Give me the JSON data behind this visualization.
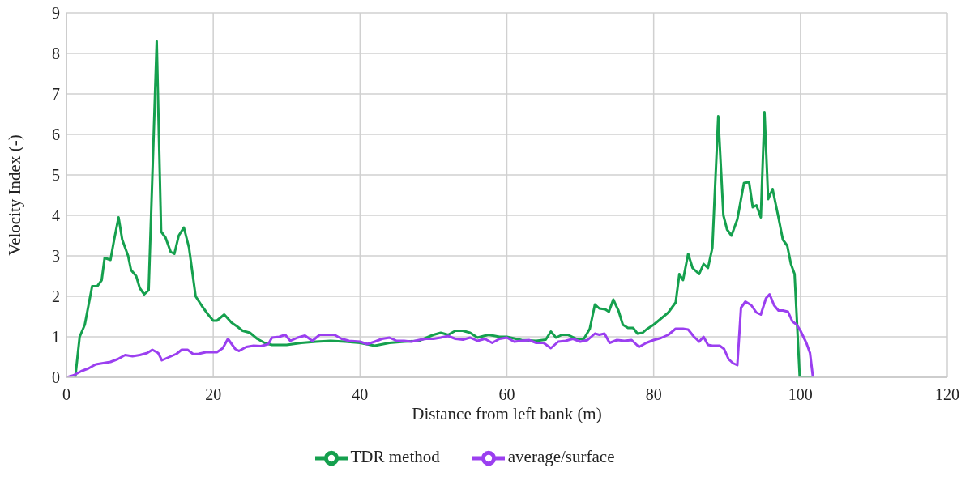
{
  "chart_data": {
    "type": "line",
    "xlabel": "Distance from left bank (m)",
    "ylabel": "Velocity Index (-)",
    "xlim": [
      0,
      120
    ],
    "xticks": [
      0,
      20,
      40,
      60,
      80,
      100,
      120
    ],
    "ylim": [
      0,
      9
    ],
    "yticks": [
      0,
      1,
      2,
      3,
      4,
      5,
      6,
      7,
      8,
      9
    ],
    "grid": true,
    "legend": "bottom",
    "marker": "none",
    "line_style": "solid",
    "series": [
      {
        "name": "TDR method",
        "color": "#15a04e",
        "x": [
          1.2,
          1.8,
          2.5,
          3.5,
          4.2,
          4.8,
          5.2,
          6,
          6.5,
          7.1,
          7.6,
          8.4,
          8.8,
          9.5,
          10,
          10.6,
          11.2,
          12.3,
          12.9,
          13.5,
          14.2,
          14.7,
          15.3,
          16,
          16.7,
          17.6,
          18.5,
          19.3,
          20,
          20.5,
          21.5,
          22.5,
          23.3,
          24,
          25,
          26,
          27,
          28,
          30,
          32,
          34,
          36,
          38,
          40,
          42,
          44,
          46,
          48,
          50,
          51,
          52,
          53,
          54,
          55,
          56,
          57.5,
          59,
          60,
          62,
          64,
          65.3,
          66,
          66.7,
          67.5,
          68.3,
          69.5,
          70.5,
          71.3,
          72,
          72.6,
          73.4,
          73.9,
          74.5,
          75.2,
          75.8,
          76.5,
          77.2,
          77.8,
          78.5,
          79,
          80,
          81,
          82,
          83,
          83.5,
          84,
          84.7,
          85.3,
          86.2,
          86.8,
          87.4,
          88,
          88.8,
          89.5,
          90,
          90.6,
          91.4,
          92.3,
          93,
          93.5,
          94,
          94.6,
          95.1,
          95.6,
          96.2,
          97,
          97.6,
          98.2,
          98.7,
          99.2,
          99.9,
          101.7
        ],
        "values": [
          0,
          1.0,
          1.3,
          2.25,
          2.25,
          2.4,
          2.95,
          2.9,
          3.4,
          3.95,
          3.4,
          3.0,
          2.65,
          2.5,
          2.2,
          2.05,
          2.15,
          8.3,
          3.6,
          3.45,
          3.1,
          3.05,
          3.5,
          3.7,
          3.2,
          2.0,
          1.75,
          1.55,
          1.4,
          1.4,
          1.55,
          1.35,
          1.25,
          1.15,
          1.1,
          0.95,
          0.85,
          0.8,
          0.8,
          0.85,
          0.88,
          0.9,
          0.88,
          0.85,
          0.78,
          0.85,
          0.88,
          0.9,
          1.05,
          1.1,
          1.05,
          1.15,
          1.15,
          1.1,
          0.98,
          1.05,
          1.0,
          1.0,
          0.92,
          0.9,
          0.93,
          1.13,
          0.98,
          1.05,
          1.05,
          0.95,
          0.95,
          1.2,
          1.8,
          1.7,
          1.68,
          1.62,
          1.92,
          1.65,
          1.3,
          1.22,
          1.22,
          1.08,
          1.1,
          1.18,
          1.3,
          1.45,
          1.6,
          1.85,
          2.55,
          2.4,
          3.05,
          2.7,
          2.55,
          2.8,
          2.7,
          3.2,
          6.45,
          4.0,
          3.65,
          3.5,
          3.9,
          4.8,
          4.82,
          4.2,
          4.25,
          3.95,
          6.55,
          4.4,
          4.65,
          3.95,
          3.4,
          3.25,
          2.8,
          2.55,
          0,
          0
        ]
      },
      {
        "name": "average/surface",
        "color": "#9b3ff0",
        "x": [
          0,
          1,
          2,
          3,
          4,
          5,
          6,
          7,
          8,
          9,
          10,
          11,
          11.7,
          12.5,
          13,
          14,
          15,
          15.7,
          16.5,
          17.3,
          18,
          19,
          20.5,
          21.3,
          22,
          23,
          23.5,
          24.5,
          25.5,
          26.5,
          27.5,
          28,
          29,
          29.8,
          30.5,
          31.5,
          32.5,
          33.5,
          34.5,
          35.5,
          36.5,
          37.5,
          38.5,
          40,
          41,
          42,
          43,
          44,
          45,
          46,
          47,
          48,
          49,
          50,
          51,
          52,
          53,
          54,
          55,
          56,
          57,
          58,
          59,
          60,
          61,
          62,
          63,
          64,
          65,
          66,
          67,
          68,
          69,
          70,
          71,
          72,
          72.6,
          73.3,
          74,
          75,
          76,
          77,
          78,
          79,
          80,
          81,
          82,
          83,
          84,
          84.7,
          85.5,
          86.2,
          86.8,
          87.4,
          88,
          89,
          89.6,
          90.2,
          90.8,
          91.4,
          91.9,
          92.5,
          93.3,
          94,
          94.6,
          95.3,
          95.8,
          96.4,
          97,
          97.6,
          98.3,
          98.9,
          99.5,
          100,
          100.8,
          101.3,
          101.7
        ],
        "values": [
          0,
          0.05,
          0.15,
          0.22,
          0.32,
          0.35,
          0.38,
          0.45,
          0.55,
          0.52,
          0.55,
          0.6,
          0.68,
          0.6,
          0.42,
          0.5,
          0.58,
          0.68,
          0.68,
          0.57,
          0.58,
          0.62,
          0.62,
          0.72,
          0.95,
          0.7,
          0.65,
          0.75,
          0.78,
          0.77,
          0.82,
          0.98,
          1.0,
          1.05,
          0.9,
          0.98,
          1.03,
          0.9,
          1.05,
          1.05,
          1.05,
          0.95,
          0.9,
          0.88,
          0.82,
          0.88,
          0.95,
          0.98,
          0.9,
          0.9,
          0.88,
          0.92,
          0.95,
          0.95,
          0.98,
          1.02,
          0.95,
          0.93,
          0.98,
          0.9,
          0.95,
          0.85,
          0.95,
          0.98,
          0.88,
          0.9,
          0.92,
          0.85,
          0.85,
          0.72,
          0.88,
          0.9,
          0.95,
          0.88,
          0.92,
          1.08,
          1.05,
          1.08,
          0.85,
          0.92,
          0.9,
          0.92,
          0.75,
          0.85,
          0.92,
          0.97,
          1.05,
          1.2,
          1.2,
          1.18,
          1.0,
          0.88,
          1.0,
          0.8,
          0.78,
          0.78,
          0.7,
          0.45,
          0.35,
          0.3,
          1.72,
          1.87,
          1.78,
          1.6,
          1.55,
          1.95,
          2.05,
          1.78,
          1.65,
          1.65,
          1.62,
          1.38,
          1.3,
          1.15,
          0.85,
          0.6,
          0
        ]
      }
    ]
  }
}
